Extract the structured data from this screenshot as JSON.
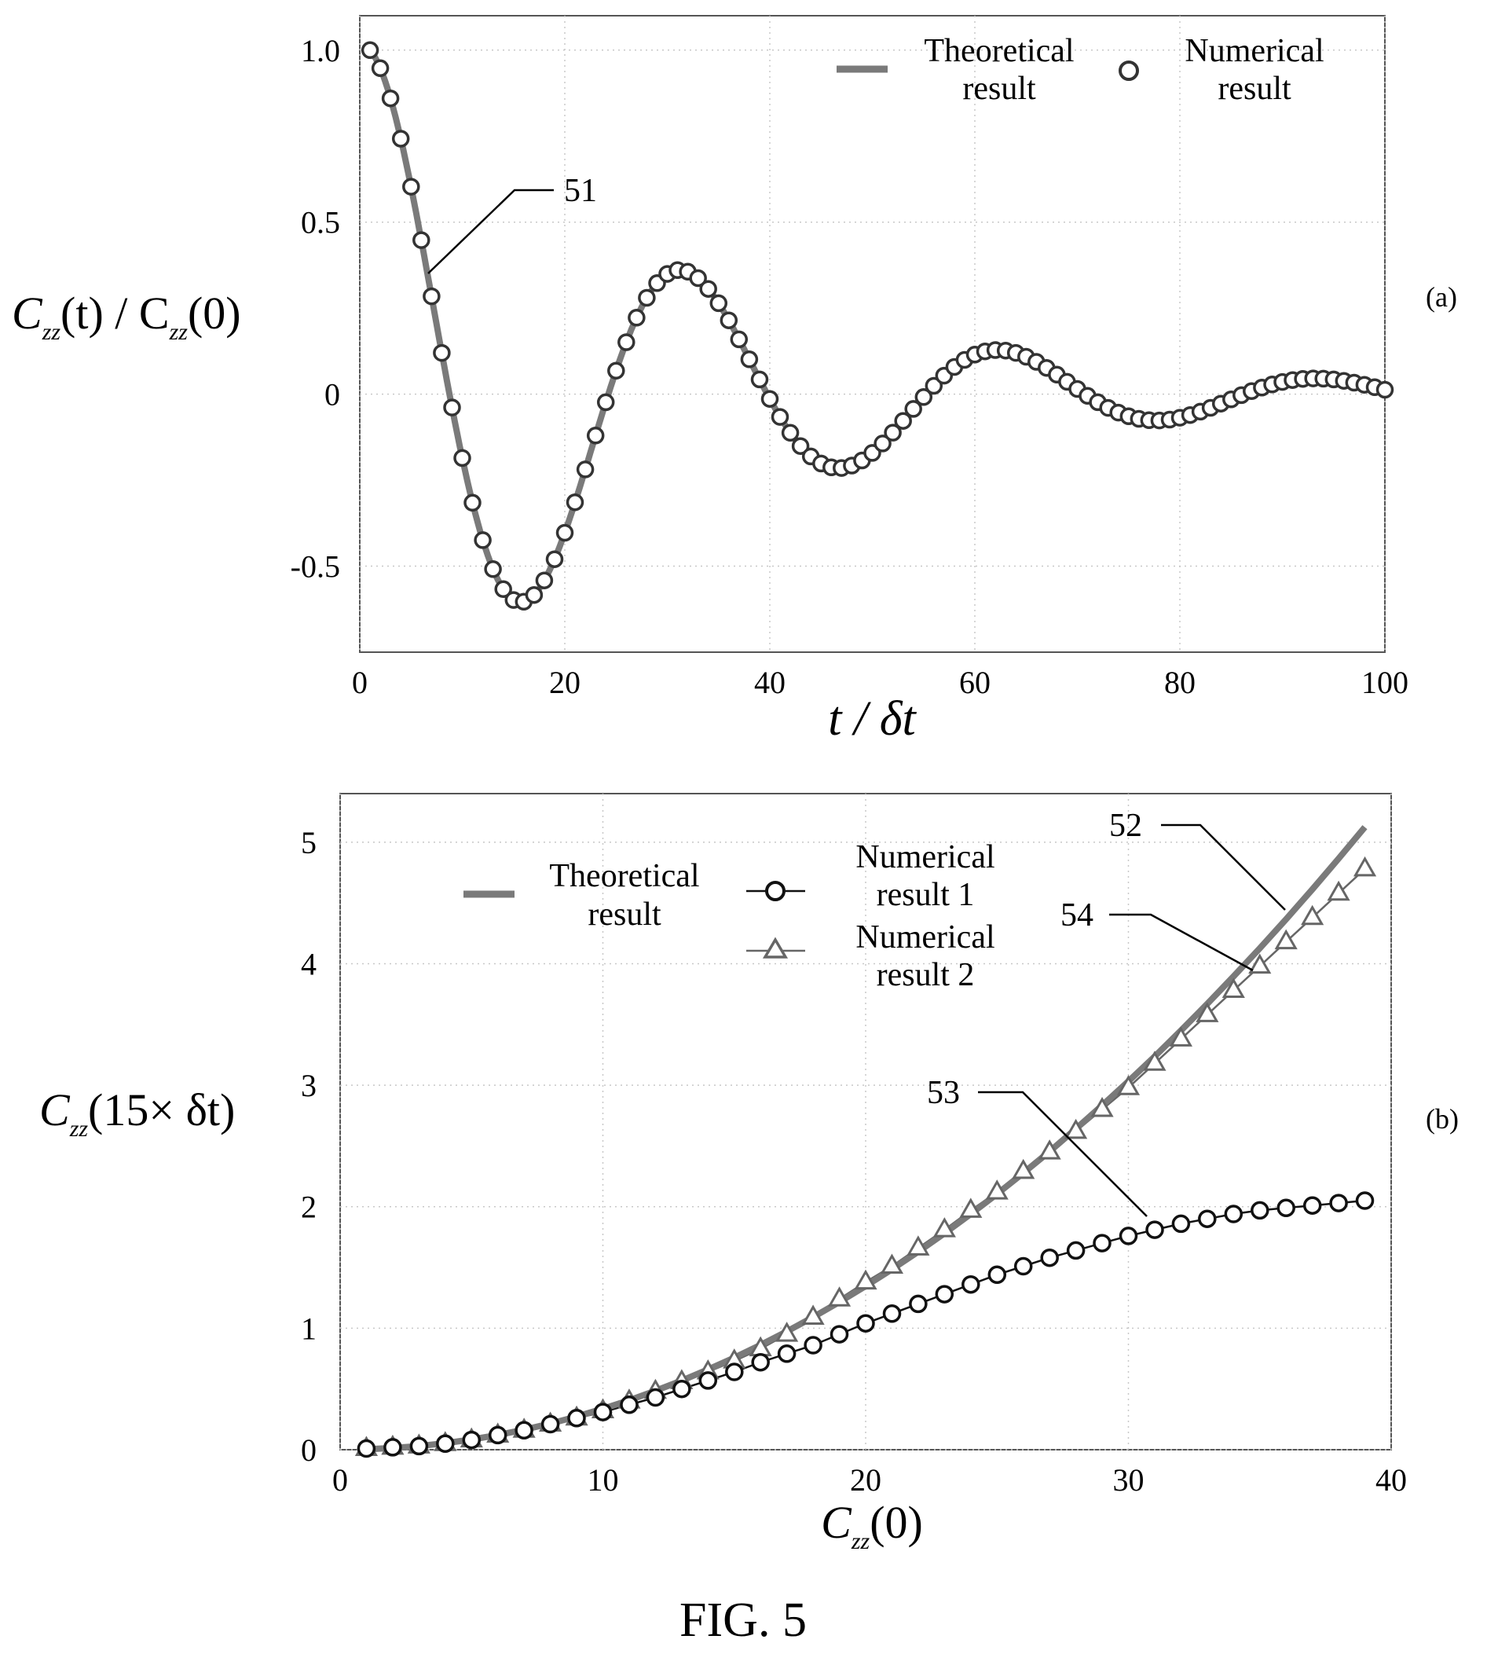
{
  "figure_caption": "FIG. 5",
  "panels": {
    "a": {
      "label": "(a)",
      "ylabel": {
        "prefix": "C",
        "sub1": "zz",
        "mid": "(t) / C",
        "sub2": "zz",
        "suffix": "(0)"
      },
      "xlabel": "t / δt",
      "legend": {
        "theoretical_line1": "Theoretical",
        "theoretical_line2": "result",
        "numerical_line1": "Numerical",
        "numerical_line2": "result"
      },
      "ref_51": "51"
    },
    "b": {
      "label": "(b)",
      "ylabel": {
        "prefix": "C",
        "sub1": "zz",
        "suffix": "(15× δt)"
      },
      "xlabel": {
        "prefix": "C",
        "sub1": "zz",
        "suffix": "(0)"
      },
      "legend": {
        "theoretical_line1": "Theoretical",
        "theoretical_line2": "result",
        "num1_line1": "Numerical",
        "num1_line2": "result 1",
        "num2_line1": "Numerical",
        "num2_line2": "result 2"
      },
      "ref_52": "52",
      "ref_53": "53",
      "ref_54": "54"
    }
  },
  "chart_data": [
    {
      "type": "line",
      "panel": "a",
      "xlim": [
        0,
        100
      ],
      "ylim": [
        -0.75,
        1.1
      ],
      "x_ticks": [
        0,
        20,
        40,
        60,
        80,
        100
      ],
      "x_tick_labels": [
        "0",
        "20",
        "40",
        "60",
        "80",
        "100"
      ],
      "y_ticks": [
        -0.5,
        0,
        0.5,
        1.0
      ],
      "y_tick_labels": [
        "-0.5",
        "0",
        "0.5",
        "1.0"
      ],
      "grid": true,
      "legend_position": "top-right",
      "series": [
        {
          "name": "Theoretical result",
          "style": "solid gray line",
          "model": {
            "form": "damped cosine",
            "amplitude": 1.0,
            "t0": 1,
            "period": 31,
            "decay_time": 30
          }
        },
        {
          "name": "Numerical result",
          "style": "hollow circle markers",
          "x_start": 1,
          "x_end": 100,
          "x_step": 1,
          "samples": [
            [
              1,
              1.0
            ],
            [
              16,
              -0.55
            ],
            [
              32,
              0.28
            ],
            [
              48,
              -0.16
            ],
            [
              63,
              0.08
            ],
            [
              79,
              -0.04
            ],
            [
              94,
              0.02
            ],
            [
              100,
              0.01
            ]
          ]
        }
      ],
      "colors": {
        "theoretical": "#7a7a7a",
        "numerical": "#333333"
      }
    },
    {
      "type": "line",
      "panel": "b",
      "xlim": [
        0,
        40
      ],
      "ylim": [
        0,
        5.4
      ],
      "x_ticks": [
        0,
        10,
        20,
        30,
        40
      ],
      "x_tick_labels": [
        "0",
        "10",
        "20",
        "30",
        "40"
      ],
      "y_ticks": [
        0,
        1,
        2,
        3,
        4,
        5
      ],
      "y_tick_labels": [
        "0",
        "1",
        "2",
        "3",
        "4",
        "5"
      ],
      "grid": true,
      "legend_position": "top",
      "x": [
        1,
        2,
        3,
        4,
        5,
        6,
        7,
        8,
        9,
        10,
        11,
        12,
        13,
        14,
        15,
        16,
        17,
        18,
        19,
        20,
        21,
        22,
        23,
        24,
        25,
        26,
        27,
        28,
        29,
        30,
        31,
        32,
        33,
        34,
        35,
        36,
        37,
        38,
        39
      ],
      "series": [
        {
          "name": "Theoretical result",
          "style": "solid gray line",
          "values": [
            0.003,
            0.014,
            0.03,
            0.054,
            0.084,
            0.121,
            0.165,
            0.215,
            0.273,
            0.337,
            0.407,
            0.485,
            0.569,
            0.66,
            0.757,
            0.862,
            0.973,
            1.091,
            1.215,
            1.347,
            1.485,
            1.63,
            1.781,
            1.94,
            2.105,
            2.277,
            2.455,
            2.641,
            2.833,
            3.032,
            3.237,
            3.45,
            3.669,
            3.895,
            4.127,
            4.366,
            4.612,
            4.865,
            5.124
          ]
        },
        {
          "name": "Numerical result 1",
          "style": "black circle markers with line",
          "values": [
            0.01,
            0.02,
            0.03,
            0.05,
            0.08,
            0.12,
            0.16,
            0.21,
            0.26,
            0.31,
            0.37,
            0.43,
            0.5,
            0.57,
            0.64,
            0.72,
            0.79,
            0.86,
            0.95,
            1.04,
            1.12,
            1.2,
            1.28,
            1.36,
            1.44,
            1.51,
            1.58,
            1.64,
            1.7,
            1.76,
            1.81,
            1.86,
            1.9,
            1.94,
            1.97,
            1.99,
            2.01,
            2.03,
            2.05
          ]
        },
        {
          "name": "Numerical result 2",
          "style": "gray triangle markers with line",
          "values": [
            0.01,
            0.02,
            0.03,
            0.05,
            0.08,
            0.12,
            0.16,
            0.21,
            0.26,
            0.32,
            0.4,
            0.48,
            0.56,
            0.64,
            0.73,
            0.83,
            0.95,
            1.09,
            1.24,
            1.38,
            1.51,
            1.66,
            1.81,
            1.97,
            2.12,
            2.29,
            2.45,
            2.62,
            2.8,
            2.98,
            3.18,
            3.38,
            3.58,
            3.78,
            3.98,
            4.18,
            4.38,
            4.58,
            4.78
          ]
        }
      ],
      "colors": {
        "theoretical": "#7a7a7a",
        "numerical_1": "#111111",
        "numerical_2": "#666666"
      }
    }
  ]
}
